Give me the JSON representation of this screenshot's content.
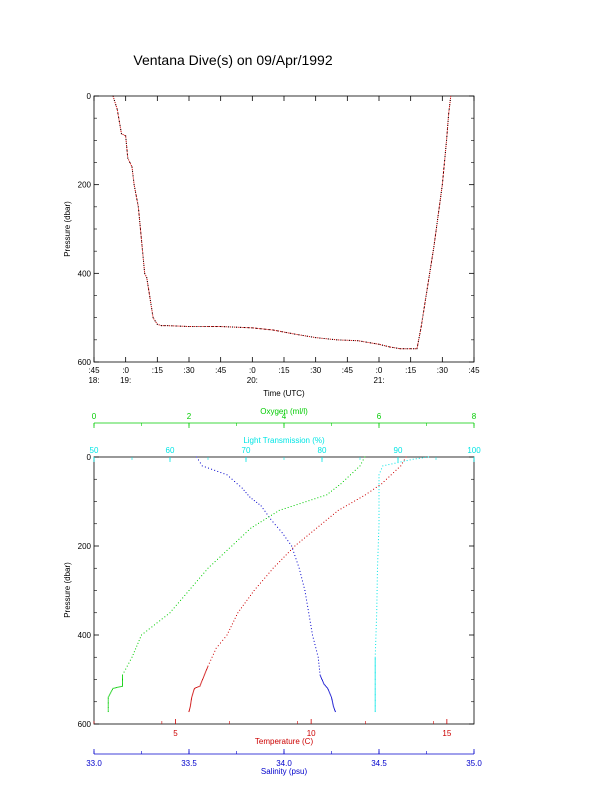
{
  "page": {
    "title": "Ventana Dive(s) on 09/Apr/1992"
  },
  "colors": {
    "temperature": "#cc0000",
    "salinity": "#0000cc",
    "oxygen": "#00cc00",
    "light_transmission": "#00e5e5",
    "axis": "#000000"
  },
  "chart_data": [
    {
      "type": "line",
      "title": "Ventana Dive(s) on 09/Apr/1992",
      "xlabel": "Time (UTC)",
      "ylabel": "Pressure (dbar)",
      "ylim": [
        600,
        0
      ],
      "y_ticks": [
        "0",
        "200",
        "400",
        "600"
      ],
      "x_ticks": [
        {
          "minute": ":45",
          "hour": "18:"
        },
        {
          "minute": ":0",
          "hour": "19:"
        },
        {
          "minute": ":15",
          "hour": ""
        },
        {
          "minute": ":30",
          "hour": ""
        },
        {
          "minute": ":45",
          "hour": ""
        },
        {
          "minute": ":0",
          "hour": "20:"
        },
        {
          "minute": ":15",
          "hour": ""
        },
        {
          "minute": ":30",
          "hour": ""
        },
        {
          "minute": ":45",
          "hour": ""
        },
        {
          "minute": ":0",
          "hour": "21:"
        },
        {
          "minute": ":15",
          "hour": ""
        },
        {
          "minute": ":30",
          "hour": ""
        },
        {
          "minute": ":45",
          "hour": ""
        }
      ],
      "xlim": [
        "18:45",
        "21:45"
      ],
      "series": [
        {
          "x": [
            "18:54",
            "18:56",
            "18:58",
            "19:00",
            "19:01",
            "19:03",
            "19:04",
            "19:06",
            "19:07",
            "19:09",
            "19:10",
            "19:12",
            "19:13",
            "19:15",
            "19:17",
            "19:20",
            "19:30",
            "19:45",
            "20:00",
            "20:10",
            "20:20",
            "20:30",
            "20:40",
            "20:50",
            "21:00",
            "21:05",
            "21:10",
            "21:15",
            "21:18",
            "21:20",
            "21:22",
            "21:24",
            "21:26",
            "21:28",
            "21:30",
            "21:32",
            "21:33",
            "21:34"
          ],
          "y": [
            0,
            30,
            85,
            90,
            140,
            160,
            200,
            250,
            300,
            400,
            410,
            470,
            500,
            515,
            518,
            518,
            520,
            520,
            523,
            528,
            537,
            545,
            550,
            552,
            560,
            566,
            570,
            570,
            570,
            520,
            460,
            400,
            340,
            270,
            200,
            100,
            40,
            0
          ]
        }
      ]
    },
    {
      "type": "scatter",
      "ylabel": "Pressure (dbar)",
      "ylim": [
        600,
        0
      ],
      "y_ticks": [
        "0",
        "200",
        "400",
        "600"
      ],
      "axes": {
        "temperature": {
          "label": "Temperature (C)",
          "range": [
            2,
            16
          ],
          "ticks": [
            "5",
            "10",
            "15"
          ]
        },
        "salinity": {
          "label": "Salinity (psu)",
          "range": [
            33.0,
            35.0
          ],
          "ticks": [
            "33.0",
            "33.5",
            "34.0",
            "34.5",
            "35.0"
          ]
        },
        "oxygen": {
          "label": "Oxygen (ml/l)",
          "range": [
            0,
            8
          ],
          "ticks": [
            "0",
            "2",
            "4",
            "6",
            "8"
          ]
        },
        "light_transmission": {
          "label": "Light Transmission (%)",
          "range": [
            50,
            100
          ],
          "ticks": [
            "50",
            "60",
            "70",
            "80",
            "90",
            "100"
          ]
        }
      },
      "series": [
        {
          "axis": "temperature",
          "points": [
            [
              13.5,
              0
            ],
            [
              13.3,
              20
            ],
            [
              12.6,
              60
            ],
            [
              12.0,
              85
            ],
            [
              11.0,
              120
            ],
            [
              10.2,
              160
            ],
            [
              9.4,
              200
            ],
            [
              8.6,
              250
            ],
            [
              7.9,
              300
            ],
            [
              7.3,
              350
            ],
            [
              6.9,
              400
            ],
            [
              6.5,
              430
            ],
            [
              6.2,
              470
            ],
            [
              6.0,
              500
            ],
            [
              5.9,
              515
            ],
            [
              5.7,
              520
            ],
            [
              5.6,
              540
            ],
            [
              5.55,
              560
            ],
            [
              5.5,
              572
            ]
          ]
        },
        {
          "axis": "salinity",
          "points": [
            [
              33.54,
              0
            ],
            [
              33.57,
              20
            ],
            [
              33.7,
              40
            ],
            [
              33.78,
              70
            ],
            [
              33.82,
              90
            ],
            [
              33.88,
              110
            ],
            [
              33.93,
              140
            ],
            [
              33.99,
              170
            ],
            [
              34.04,
              200
            ],
            [
              34.08,
              250
            ],
            [
              34.11,
              300
            ],
            [
              34.13,
              350
            ],
            [
              34.15,
              400
            ],
            [
              34.18,
              450
            ],
            [
              34.19,
              490
            ],
            [
              34.21,
              510
            ],
            [
              34.23,
              520
            ],
            [
              34.25,
              540
            ],
            [
              34.26,
              560
            ],
            [
              34.27,
              572
            ]
          ]
        },
        {
          "axis": "oxygen",
          "points": [
            [
              5.7,
              0
            ],
            [
              5.6,
              20
            ],
            [
              5.2,
              60
            ],
            [
              4.9,
              85
            ],
            [
              3.9,
              120
            ],
            [
              3.3,
              160
            ],
            [
              2.9,
              200
            ],
            [
              2.4,
              250
            ],
            [
              2.0,
              300
            ],
            [
              1.6,
              350
            ],
            [
              1.0,
              400
            ],
            [
              0.8,
              450
            ],
            [
              0.6,
              490
            ],
            [
              0.6,
              500
            ],
            [
              0.6,
              515
            ],
            [
              0.4,
              520
            ],
            [
              0.3,
              540
            ],
            [
              0.3,
              560
            ],
            [
              0.3,
              572
            ]
          ]
        },
        {
          "axis": "light_transmission",
          "points": [
            [
              94,
              0
            ],
            [
              92,
              5
            ],
            [
              88,
              20
            ],
            [
              87.5,
              40
            ],
            [
              87.5,
              80
            ],
            [
              87.5,
              150
            ],
            [
              87.3,
              250
            ],
            [
              87.2,
              350
            ],
            [
              87.0,
              450
            ],
            [
              87.0,
              500
            ],
            [
              87.0,
              520
            ],
            [
              87.0,
              550
            ],
            [
              87.0,
              572
            ]
          ]
        }
      ]
    }
  ]
}
